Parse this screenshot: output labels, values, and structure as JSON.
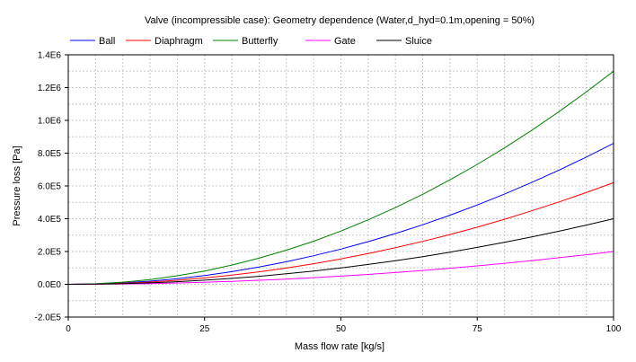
{
  "chart_data": {
    "type": "line",
    "title": "Valve (incompressible case): Geometry dependence (Water,d_hyd=0.1m,opening = 50%)",
    "xlabel": "Mass flow rate [kg/s]",
    "ylabel": "Pressure loss [Pa]",
    "xlim": [
      0,
      100
    ],
    "ylim": [
      -200000,
      1400000
    ],
    "x_ticks": [
      0,
      25,
      50,
      75,
      100
    ],
    "x_tick_labels": [
      "0",
      "25",
      "50",
      "75",
      "100"
    ],
    "y_ticks": [
      -200000,
      0,
      200000,
      400000,
      600000,
      800000,
      1000000,
      1200000,
      1400000
    ],
    "y_tick_labels": [
      "-2.0E5",
      "0.0E0",
      "2.0E5",
      "4.0E5",
      "6.0E5",
      "8.0E5",
      "1.0E6",
      "1.2E6",
      "1.4E6"
    ],
    "grid": true,
    "legend_position": "top",
    "x": [
      0,
      5,
      10,
      15,
      20,
      25,
      30,
      35,
      40,
      45,
      50,
      55,
      60,
      65,
      70,
      75,
      80,
      85,
      90,
      95,
      100
    ],
    "series": [
      {
        "name": "Ball",
        "color": "#0000ff",
        "values": [
          0,
          2150,
          8600,
          19350,
          34400,
          53750,
          77400,
          105350,
          137600,
          174150,
          215000,
          260150,
          309600,
          363350,
          421400,
          483750,
          550400,
          621350,
          696600,
          776150,
          860000
        ]
      },
      {
        "name": "Diaphragm",
        "color": "#ff0000",
        "values": [
          0,
          1550,
          6200,
          13950,
          24800,
          38750,
          55800,
          75950,
          99200,
          125550,
          155000,
          187550,
          223200,
          261950,
          303800,
          348750,
          396800,
          447950,
          502200,
          559550,
          620000
        ]
      },
      {
        "name": "Butterfly",
        "color": "#008000",
        "values": [
          0,
          3250,
          13000,
          29250,
          52000,
          81250,
          117000,
          159250,
          208000,
          263250,
          325000,
          393250,
          468000,
          549250,
          637000,
          731250,
          832000,
          939250,
          1053000,
          1173250,
          1300000
        ]
      },
      {
        "name": "Gate",
        "color": "#ff00ff",
        "values": [
          0,
          500,
          2000,
          4500,
          8000,
          12500,
          18000,
          24500,
          32000,
          40500,
          50000,
          60500,
          72000,
          84500,
          98000,
          112500,
          128000,
          144500,
          162000,
          180500,
          200000
        ]
      },
      {
        "name": "Sluice",
        "color": "#000000",
        "values": [
          0,
          1000,
          4000,
          9000,
          16000,
          25000,
          36000,
          49000,
          64000,
          81000,
          100000,
          121000,
          144000,
          169000,
          196000,
          225000,
          256000,
          289000,
          324000,
          361000,
          400000
        ]
      }
    ]
  }
}
